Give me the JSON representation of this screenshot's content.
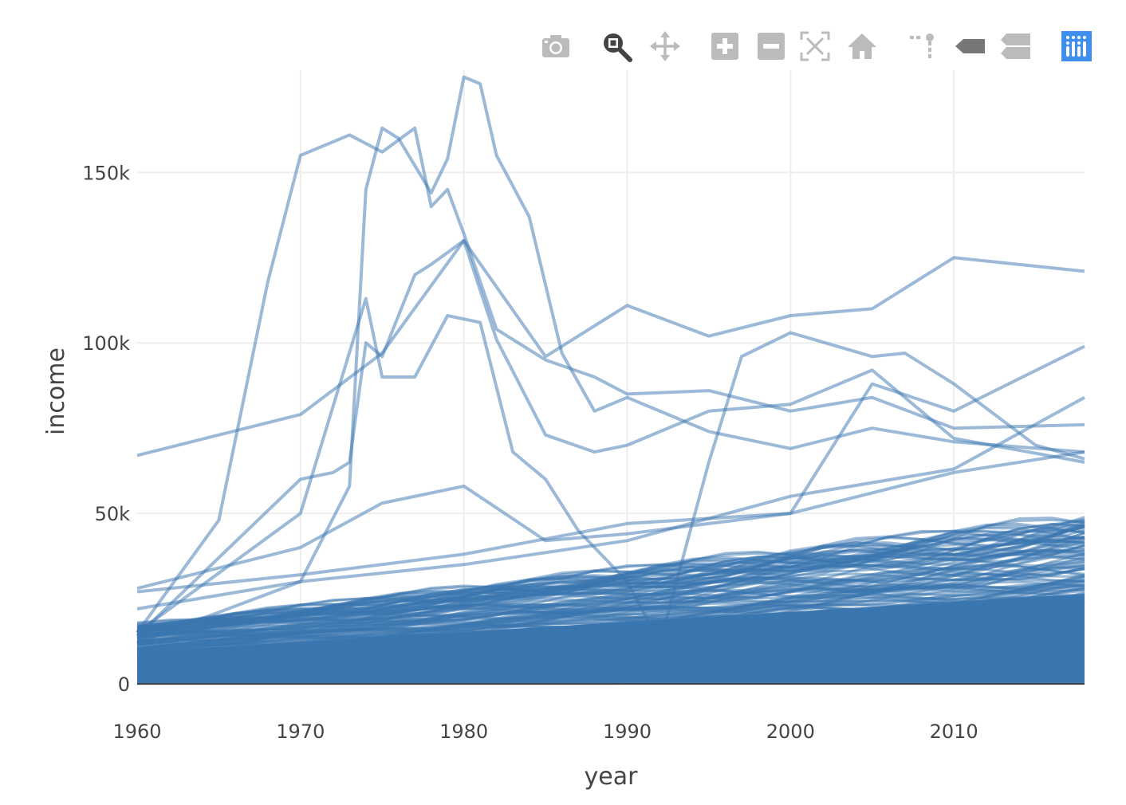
{
  "modebar": {
    "buttons": [
      {
        "name": "camera-icon",
        "active": false
      },
      {
        "name": "zoom-icon",
        "active": true
      },
      {
        "name": "pan-icon",
        "active": false
      },
      {
        "name": "zoom-in-icon",
        "active": false
      },
      {
        "name": "zoom-out-icon",
        "active": false
      },
      {
        "name": "autoscale-icon",
        "active": false
      },
      {
        "name": "home-icon",
        "active": false
      },
      {
        "name": "spikelines-icon",
        "active": false
      },
      {
        "name": "hover-closest-icon",
        "active": false
      },
      {
        "name": "hover-compare-icon",
        "active": false
      },
      {
        "name": "plotly-logo-icon",
        "active": false
      }
    ],
    "colors": {
      "inactive": "#bbbbbb",
      "active": "#444444",
      "logo": "#3f8ff0"
    }
  },
  "chart_data": {
    "type": "line",
    "title": "",
    "xlabel": "year",
    "ylabel": "income",
    "xlim": [
      1960,
      2018
    ],
    "ylim": [
      0,
      180000
    ],
    "x_ticks": [
      1960,
      1970,
      1980,
      1990,
      2000,
      2010
    ],
    "x_tick_labels": [
      "1960",
      "1970",
      "1980",
      "1990",
      "2000",
      "2010"
    ],
    "y_ticks": [
      0,
      50000,
      100000,
      150000
    ],
    "y_tick_labels": [
      "0",
      "50k",
      "100k",
      "150k"
    ],
    "grid": true,
    "legend": "none",
    "line_color": "#3a76af",
    "line_opacity": 0.5,
    "x_knots": [
      1960,
      1965,
      1970,
      1975,
      1980,
      1985,
      1990,
      1995,
      2000,
      2005,
      2010,
      2015,
      2018
    ],
    "series_description": "approximately 200 country income series; highlighted series listed below",
    "series": [
      {
        "name": "",
        "x": [
          1960,
          1970,
          1975,
          1980,
          1985,
          1990,
          1995,
          2000,
          2005,
          2010,
          2018
        ],
        "values": [
          67000,
          79000,
          97000,
          130000,
          96000,
          111000,
          102000,
          108000,
          110000,
          125000,
          121000
        ]
      },
      {
        "name": "",
        "x": [
          1960,
          1965,
          1968,
          1970,
          1973,
          1975,
          1977,
          1978,
          1979,
          1980,
          1982,
          1985,
          1988,
          1990,
          1995,
          2000,
          2005,
          2010,
          2018
        ],
        "values": [
          15000,
          48000,
          118000,
          155000,
          161000,
          156000,
          163000,
          140000,
          145000,
          132000,
          104000,
          95000,
          90000,
          85000,
          86000,
          80000,
          84000,
          75000,
          76000
        ]
      },
      {
        "name": "",
        "x": [
          1960,
          1970,
          1973,
          1974,
          1975,
          1976,
          1978,
          1979,
          1980,
          1981,
          1982,
          1984,
          1986,
          1988,
          1990,
          1995,
          2000,
          2005,
          2010,
          2018
        ],
        "values": [
          12000,
          30000,
          58000,
          145000,
          163000,
          160000,
          144000,
          154000,
          178000,
          176000,
          155000,
          137000,
          97000,
          80000,
          84000,
          74000,
          69000,
          75000,
          71000,
          68000
        ]
      },
      {
        "name": "",
        "x": [
          1960,
          1970,
          1972,
          1973,
          1974,
          1975,
          1977,
          1978,
          1980,
          1982,
          1985,
          1988,
          1990,
          1995,
          2000,
          2005,
          2010,
          2018
        ],
        "values": [
          14000,
          60000,
          62000,
          65000,
          100000,
          96000,
          120000,
          123000,
          130000,
          101000,
          73000,
          68000,
          70000,
          80000,
          82000,
          92000,
          72000,
          65000
        ]
      },
      {
        "name": "",
        "x": [
          1960,
          1970,
          1974,
          1975,
          1977,
          1979,
          1981,
          1983,
          1985,
          1987,
          1990,
          1992,
          1995,
          1997,
          2000,
          2005,
          2007,
          2010,
          2015,
          2018
        ],
        "values": [
          15000,
          50000,
          113000,
          90000,
          90000,
          108000,
          106000,
          68000,
          60000,
          45000,
          30000,
          12000,
          65000,
          96000,
          103000,
          96000,
          97000,
          88000,
          70000,
          66000
        ]
      },
      {
        "name": "",
        "x": [
          1960,
          1970,
          1975,
          1980,
          1985,
          1990,
          1995,
          2000,
          2005,
          2010,
          2018
        ],
        "values": [
          28000,
          40000,
          53000,
          58000,
          42000,
          44000,
          47000,
          50000,
          88000,
          80000,
          99000
        ]
      },
      {
        "name": "",
        "x": [
          1960,
          1970,
          1980,
          1990,
          2000,
          2010,
          2018
        ],
        "values": [
          27000,
          32000,
          38000,
          47000,
          50000,
          62000,
          68000
        ]
      },
      {
        "name": "",
        "x": [
          1960,
          1970,
          1980,
          1990,
          2000,
          2010,
          2018
        ],
        "values": [
          22000,
          30000,
          35000,
          42000,
          55000,
          63000,
          84000
        ]
      }
    ],
    "background_band": {
      "description": "dense bundle of low-income series",
      "bottom": 0,
      "top_at_1960": 17000,
      "top_at_2018": 48000
    }
  }
}
